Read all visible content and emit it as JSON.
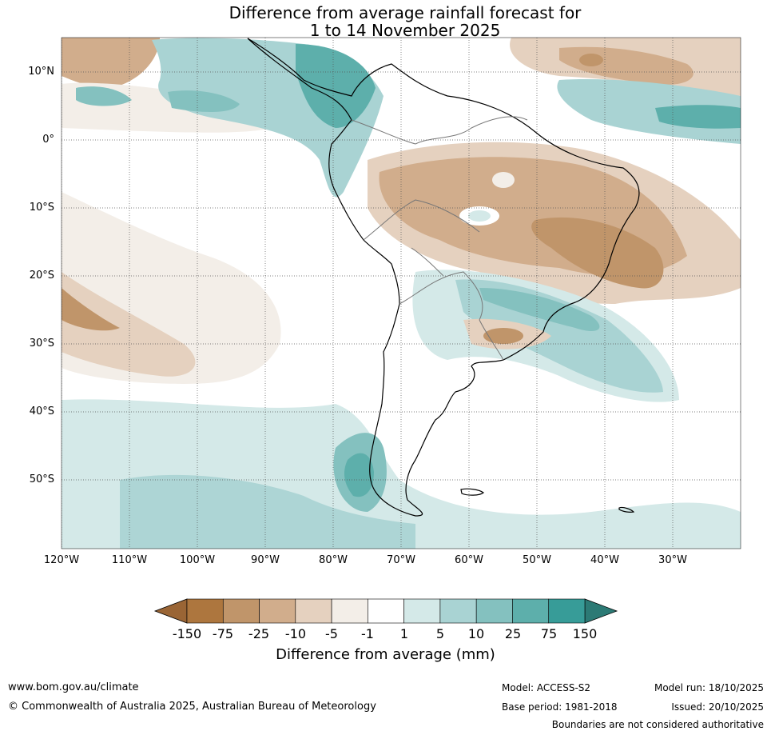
{
  "title": {
    "line1": "Difference from average rainfall forecast for",
    "line2": "1 to 14 November 2025"
  },
  "lat_labels": [
    "10°N",
    "0°",
    "10°S",
    "20°S",
    "30°S",
    "40°S",
    "50°S"
  ],
  "lon_labels": [
    "120°W",
    "110°W",
    "100°W",
    "90°W",
    "80°W",
    "70°W",
    "60°W",
    "50°W",
    "40°W",
    "30°W"
  ],
  "legend": {
    "title": "Difference from average (mm)",
    "ticks": [
      "-150",
      "-75",
      "-25",
      "-10",
      "-5",
      "-1",
      "1",
      "5",
      "10",
      "25",
      "75",
      "150"
    ],
    "colors": [
      "#9a6535",
      "#ad763e",
      "#c0956a",
      "#d1ad8c",
      "#e5d1bf",
      "#f3eee8",
      "#ffffff",
      "#d4e9e8",
      "#a9d3d3",
      "#84c1bf",
      "#5dafab",
      "#379c98",
      "#2c7a75"
    ]
  },
  "footer": {
    "website": "www.bom.gov.au/climate",
    "copyright": "© Commonwealth of Australia 2025, Australian Bureau of Meteorology",
    "model": "Model: ACCESS-S2",
    "base_period": "Base period: 1981-2018",
    "model_run": "Model run: 18/10/2025",
    "issued": "Issued: 20/10/2025",
    "boundaries": "Boundaries are not considered authoritative"
  }
}
